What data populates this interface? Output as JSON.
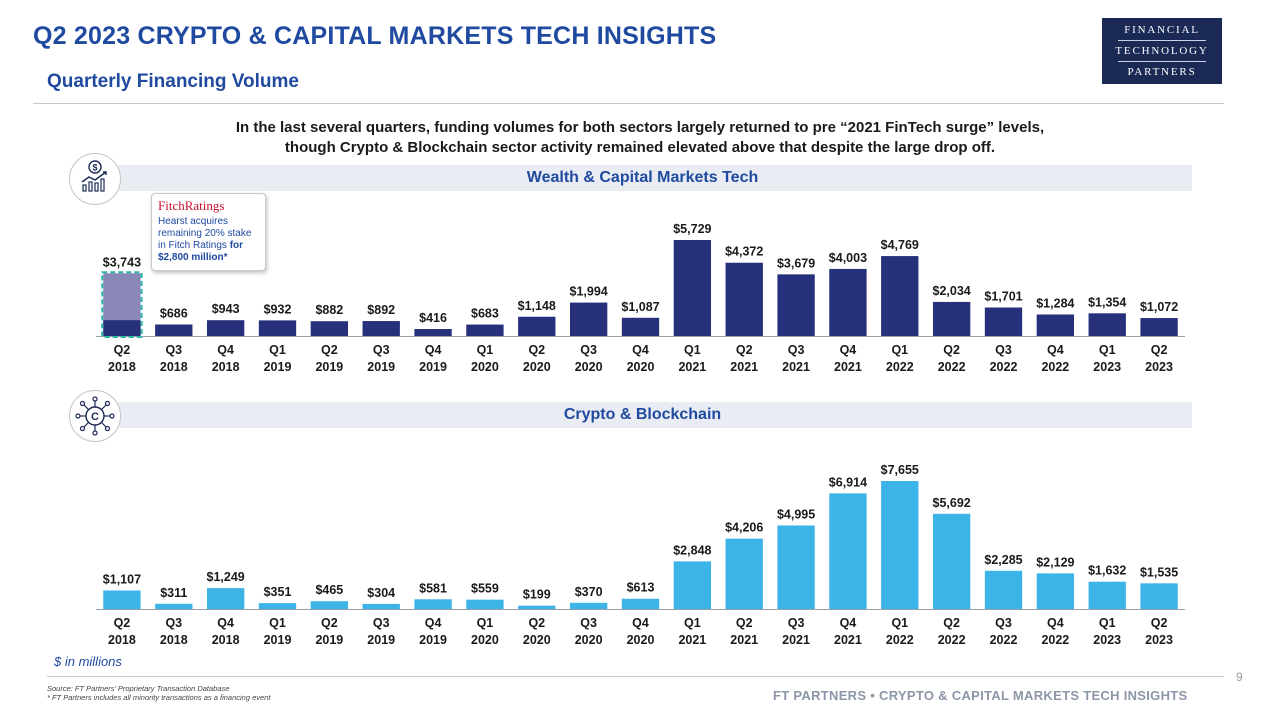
{
  "header": {
    "title": "Q2 2023 CRYPTO & CAPITAL MARKETS TECH INSIGHTS",
    "subtitle": "Quarterly Financing Volume",
    "logo": {
      "line1": "FINANCIAL",
      "line2": "TECHNOLOGY",
      "line3": "PARTNERS"
    }
  },
  "intro": {
    "line1": "In the last several quarters, funding volumes for both sectors largely returned to pre “2021 FinTech surge” levels,",
    "line2": "though Crypto & Blockchain sector activity remained elevated above that despite the large drop off."
  },
  "icons": {
    "wealth": "money-growth-chart-icon",
    "crypto": "crypto-coin-network-icon"
  },
  "annotation": {
    "brand": "FitchRatings",
    "text": "Hearst acquires remaining 20% stake in Fitch Ratings",
    "highlight": "for $2,800 million*"
  },
  "chart_data": [
    {
      "type": "bar",
      "title": "Wealth & Capital Markets Tech",
      "categories": [
        "Q2 2018",
        "Q3 2018",
        "Q4 2018",
        "Q1 2019",
        "Q2 2019",
        "Q3 2019",
        "Q4 2019",
        "Q1 2020",
        "Q2 2020",
        "Q3 2020",
        "Q4 2020",
        "Q1 2021",
        "Q2 2021",
        "Q3 2021",
        "Q4 2021",
        "Q1 2022",
        "Q2 2022",
        "Q3 2022",
        "Q4 2022",
        "Q1 2023",
        "Q2 2023"
      ],
      "values": [
        3743,
        686,
        943,
        932,
        882,
        892,
        416,
        683,
        1148,
        1994,
        1087,
        5729,
        4372,
        3679,
        4003,
        4769,
        2034,
        1701,
        1284,
        1354,
        1072
      ],
      "labels": [
        "$3,743",
        "$686",
        "$943",
        "$932",
        "$882",
        "$892",
        "$416",
        "$683",
        "$1,148",
        "$1,994",
        "$1,087",
        "$5,729",
        "$4,372",
        "$3,679",
        "$4,003",
        "$4,769",
        "$2,034",
        "$1,701",
        "$1,284",
        "$1,354",
        "$1,072"
      ],
      "highlight": {
        "index": 0,
        "value": 2800
      },
      "color": "#27307a",
      "highlight_color": "#8a86b8",
      "ylabel": "$ in millions"
    },
    {
      "type": "bar",
      "title": "Crypto & Blockchain",
      "categories": [
        "Q2 2018",
        "Q3 2018",
        "Q4 2018",
        "Q1 2019",
        "Q2 2019",
        "Q3 2019",
        "Q4 2019",
        "Q1 2020",
        "Q2 2020",
        "Q3 2020",
        "Q4 2020",
        "Q1 2021",
        "Q2 2021",
        "Q3 2021",
        "Q4 2021",
        "Q1 2022",
        "Q2 2022",
        "Q3 2022",
        "Q4 2022",
        "Q1 2023",
        "Q2 2023"
      ],
      "values": [
        1107,
        311,
        1249,
        351,
        465,
        304,
        581,
        559,
        199,
        370,
        613,
        2848,
        4206,
        4995,
        6914,
        7655,
        5692,
        2285,
        2129,
        1632,
        1535
      ],
      "labels": [
        "$1,107",
        "$311",
        "$1,249",
        "$351",
        "$465",
        "$304",
        "$581",
        "$559",
        "$199",
        "$370",
        "$613",
        "$2,848",
        "$4,206",
        "$4,995",
        "$6,914",
        "$7,655",
        "$5,692",
        "$2,285",
        "$2,129",
        "$1,632",
        "$1,535"
      ],
      "color": "#3db4e8",
      "ylabel": "$ in millions"
    }
  ],
  "footer": {
    "units": "$ in millions",
    "source1": "Source: FT Partners’ Proprietary Transaction Database",
    "source2": "* FT Partners includes all minority transactions as a financing event",
    "page": "9",
    "brand": "FT PARTNERS • CRYPTO & CAPITAL MARKETS TECH INSIGHTS"
  }
}
